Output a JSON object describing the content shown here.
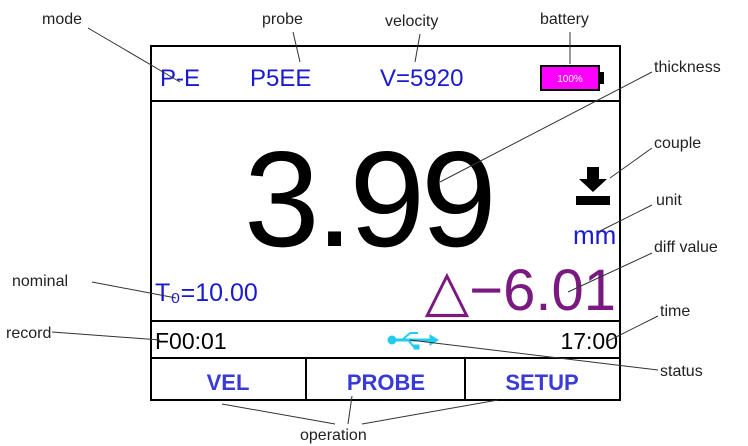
{
  "screen": {
    "mode": "P-E",
    "probe": "P5EE",
    "velocity": "V=5920",
    "battery": "100%",
    "thickness": "3.99",
    "unit": "mm",
    "nominal": "T₀=10.00",
    "diff": "△−6.01",
    "record": "F00:01",
    "time": "17:00",
    "buttons": [
      "VEL",
      "PROBE",
      "SETUP"
    ]
  },
  "annotations": {
    "mode": "mode",
    "probe": "probe",
    "velocity": "velocity",
    "battery": "battery",
    "thickness": "thickness",
    "couple": "couple",
    "unit": "unit",
    "diff": "diff value",
    "nominal": "nominal",
    "time": "time",
    "record": "record",
    "status": "status",
    "operation": "operation"
  }
}
